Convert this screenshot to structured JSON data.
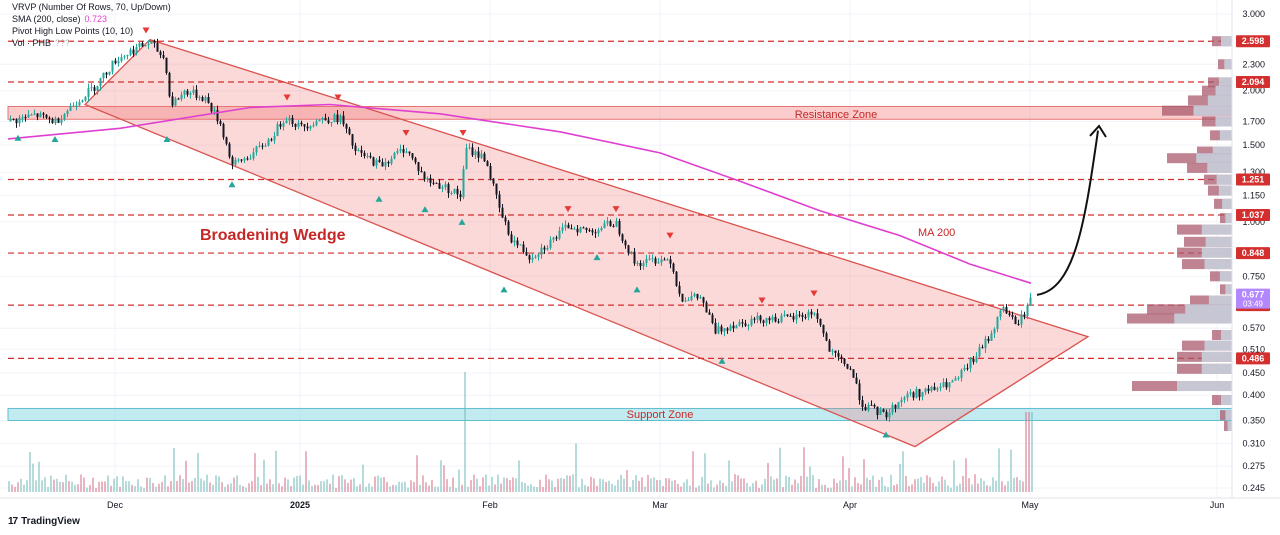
{
  "indicators": {
    "vrvp": "VRVP (Number Of Rows, 70, Up/Down)",
    "sma_label": "SMA (200, close)",
    "sma_value": "0.723",
    "pivot": "Pivot High Low Points (10, 10)",
    "vol_label": "Vol · PHB",
    "vol_value": "???"
  },
  "brand": {
    "logo": "17",
    "name": "TradingView"
  },
  "colors": {
    "candle_up": "#26a69a",
    "candle": "#131722",
    "level": "#d32f2f",
    "wedge_fill": "rgba(240,120,120,0.28)",
    "wedge_line": "#d9534f",
    "resistance_fill": "rgba(240,110,110,0.35)",
    "support_fill": "rgba(120,210,225,0.45)",
    "ma": "#e040d0",
    "price_badge": "#b388ff"
  },
  "annotations": {
    "wedge_label": "Broadening Wedge",
    "resistance_label": "Resistance Zone",
    "support_label": "Support Zone",
    "ma_label": "MA 200"
  },
  "chart_data": {
    "type": "candlestick",
    "scale": "log",
    "ylim": [
      0.235,
      3.15
    ],
    "x_ticks": [
      "Dec",
      "2025",
      "Feb",
      "Mar",
      "Apr",
      "May",
      "Jun"
    ],
    "y_ticks": [
      "3.000",
      "2.300",
      "2.000",
      "1.700",
      "1.500",
      "1.300",
      "1.150",
      "1.000",
      "0.750",
      "0.570",
      "0.510",
      "0.450",
      "0.400",
      "0.350",
      "0.310",
      "0.275",
      "0.245"
    ],
    "y_tick_values": [
      3.0,
      2.3,
      2.0,
      1.7,
      1.5,
      1.3,
      1.15,
      1.0,
      0.75,
      0.57,
      0.51,
      0.45,
      0.4,
      0.35,
      0.31,
      0.275,
      0.245
    ],
    "levels": [
      {
        "label": "2.598",
        "value": 2.598
      },
      {
        "label": "2.094",
        "value": 2.094
      },
      {
        "label": "1.251",
        "value": 1.251
      },
      {
        "label": "1.037",
        "value": 1.037
      },
      {
        "label": "0.848",
        "value": 0.848
      },
      {
        "label": "0.644",
        "value": 0.644
      },
      {
        "label": "0.486",
        "value": 0.486
      }
    ],
    "current_price": {
      "label": "0.677",
      "timer": "03:49",
      "value": 0.677
    },
    "resistance_zone": [
      1.72,
      1.84
    ],
    "support_zone": [
      0.35,
      0.373
    ],
    "close_path": [
      {
        "x": 10,
        "p": 1.7
      },
      {
        "x": 35,
        "p": 1.76
      },
      {
        "x": 55,
        "p": 1.7
      },
      {
        "x": 75,
        "p": 1.88
      },
      {
        "x": 95,
        "p": 2.05
      },
      {
        "x": 115,
        "p": 2.35
      },
      {
        "x": 135,
        "p": 2.5
      },
      {
        "x": 150,
        "p": 2.58
      },
      {
        "x": 165,
        "p": 2.35
      },
      {
        "x": 170,
        "p": 1.85
      },
      {
        "x": 185,
        "p": 2.0
      },
      {
        "x": 205,
        "p": 1.92
      },
      {
        "x": 220,
        "p": 1.68
      },
      {
        "x": 232,
        "p": 1.35
      },
      {
        "x": 250,
        "p": 1.42
      },
      {
        "x": 270,
        "p": 1.55
      },
      {
        "x": 285,
        "p": 1.75
      },
      {
        "x": 300,
        "p": 1.65
      },
      {
        "x": 320,
        "p": 1.72
      },
      {
        "x": 340,
        "p": 1.73
      },
      {
        "x": 355,
        "p": 1.45
      },
      {
        "x": 380,
        "p": 1.35
      },
      {
        "x": 405,
        "p": 1.48
      },
      {
        "x": 425,
        "p": 1.25
      },
      {
        "x": 445,
        "p": 1.2
      },
      {
        "x": 460,
        "p": 1.15
      },
      {
        "x": 466,
        "p": 1.47
      },
      {
        "x": 485,
        "p": 1.4
      },
      {
        "x": 500,
        "p": 1.05
      },
      {
        "x": 510,
        "p": 0.92
      },
      {
        "x": 530,
        "p": 0.83
      },
      {
        "x": 550,
        "p": 0.9
      },
      {
        "x": 568,
        "p": 0.98
      },
      {
        "x": 590,
        "p": 0.95
      },
      {
        "x": 615,
        "p": 1.0
      },
      {
        "x": 635,
        "p": 0.8
      },
      {
        "x": 655,
        "p": 0.82
      },
      {
        "x": 670,
        "p": 0.82
      },
      {
        "x": 680,
        "p": 0.67
      },
      {
        "x": 700,
        "p": 0.67
      },
      {
        "x": 715,
        "p": 0.56
      },
      {
        "x": 730,
        "p": 0.58
      },
      {
        "x": 760,
        "p": 0.6
      },
      {
        "x": 790,
        "p": 0.6
      },
      {
        "x": 815,
        "p": 0.62
      },
      {
        "x": 830,
        "p": 0.5
      },
      {
        "x": 850,
        "p": 0.46
      },
      {
        "x": 862,
        "p": 0.38
      },
      {
        "x": 885,
        "p": 0.36
      },
      {
        "x": 905,
        "p": 0.4
      },
      {
        "x": 930,
        "p": 0.41
      },
      {
        "x": 955,
        "p": 0.43
      },
      {
        "x": 975,
        "p": 0.49
      },
      {
        "x": 990,
        "p": 0.55
      },
      {
        "x": 1003,
        "p": 0.64
      },
      {
        "x": 1015,
        "p": 0.58
      },
      {
        "x": 1025,
        "p": 0.62
      },
      {
        "x": 1031,
        "p": 0.68
      }
    ],
    "ma200_path": [
      {
        "x": 8,
        "p": 1.55
      },
      {
        "x": 120,
        "p": 1.64
      },
      {
        "x": 250,
        "p": 1.83
      },
      {
        "x": 330,
        "p": 1.86
      },
      {
        "x": 440,
        "p": 1.77
      },
      {
        "x": 560,
        "p": 1.61
      },
      {
        "x": 660,
        "p": 1.44
      },
      {
        "x": 740,
        "p": 1.24
      },
      {
        "x": 820,
        "p": 1.06
      },
      {
        "x": 900,
        "p": 0.93
      },
      {
        "x": 970,
        "p": 0.8
      },
      {
        "x": 1031,
        "p": 0.723
      }
    ],
    "wedge": [
      {
        "x": 85,
        "p": 1.86
      },
      {
        "x": 150,
        "p": 2.62
      },
      {
        "x": 1088,
        "p": 0.545
      },
      {
        "x": 915,
        "p": 0.305
      },
      {
        "x": 85,
        "p": 1.86
      }
    ],
    "pivot_highs": [
      {
        "x": 146,
        "p": 2.75
      },
      {
        "x": 287,
        "p": 1.93
      },
      {
        "x": 338,
        "p": 1.93
      },
      {
        "x": 406,
        "p": 1.6
      },
      {
        "x": 463,
        "p": 1.6
      },
      {
        "x": 568,
        "p": 1.07
      },
      {
        "x": 616,
        "p": 1.07
      },
      {
        "x": 670,
        "p": 0.93
      },
      {
        "x": 762,
        "p": 0.66
      },
      {
        "x": 814,
        "p": 0.685
      }
    ],
    "pivot_lows": [
      {
        "x": 18,
        "p": 1.56
      },
      {
        "x": 55,
        "p": 1.55
      },
      {
        "x": 167,
        "p": 1.55
      },
      {
        "x": 232,
        "p": 1.22
      },
      {
        "x": 379,
        "p": 1.13
      },
      {
        "x": 425,
        "p": 1.07
      },
      {
        "x": 462,
        "p": 1.0
      },
      {
        "x": 504,
        "p": 0.7
      },
      {
        "x": 597,
        "p": 0.83
      },
      {
        "x": 637,
        "p": 0.7
      },
      {
        "x": 722,
        "p": 0.48
      },
      {
        "x": 886,
        "p": 0.325
      }
    ]
  }
}
